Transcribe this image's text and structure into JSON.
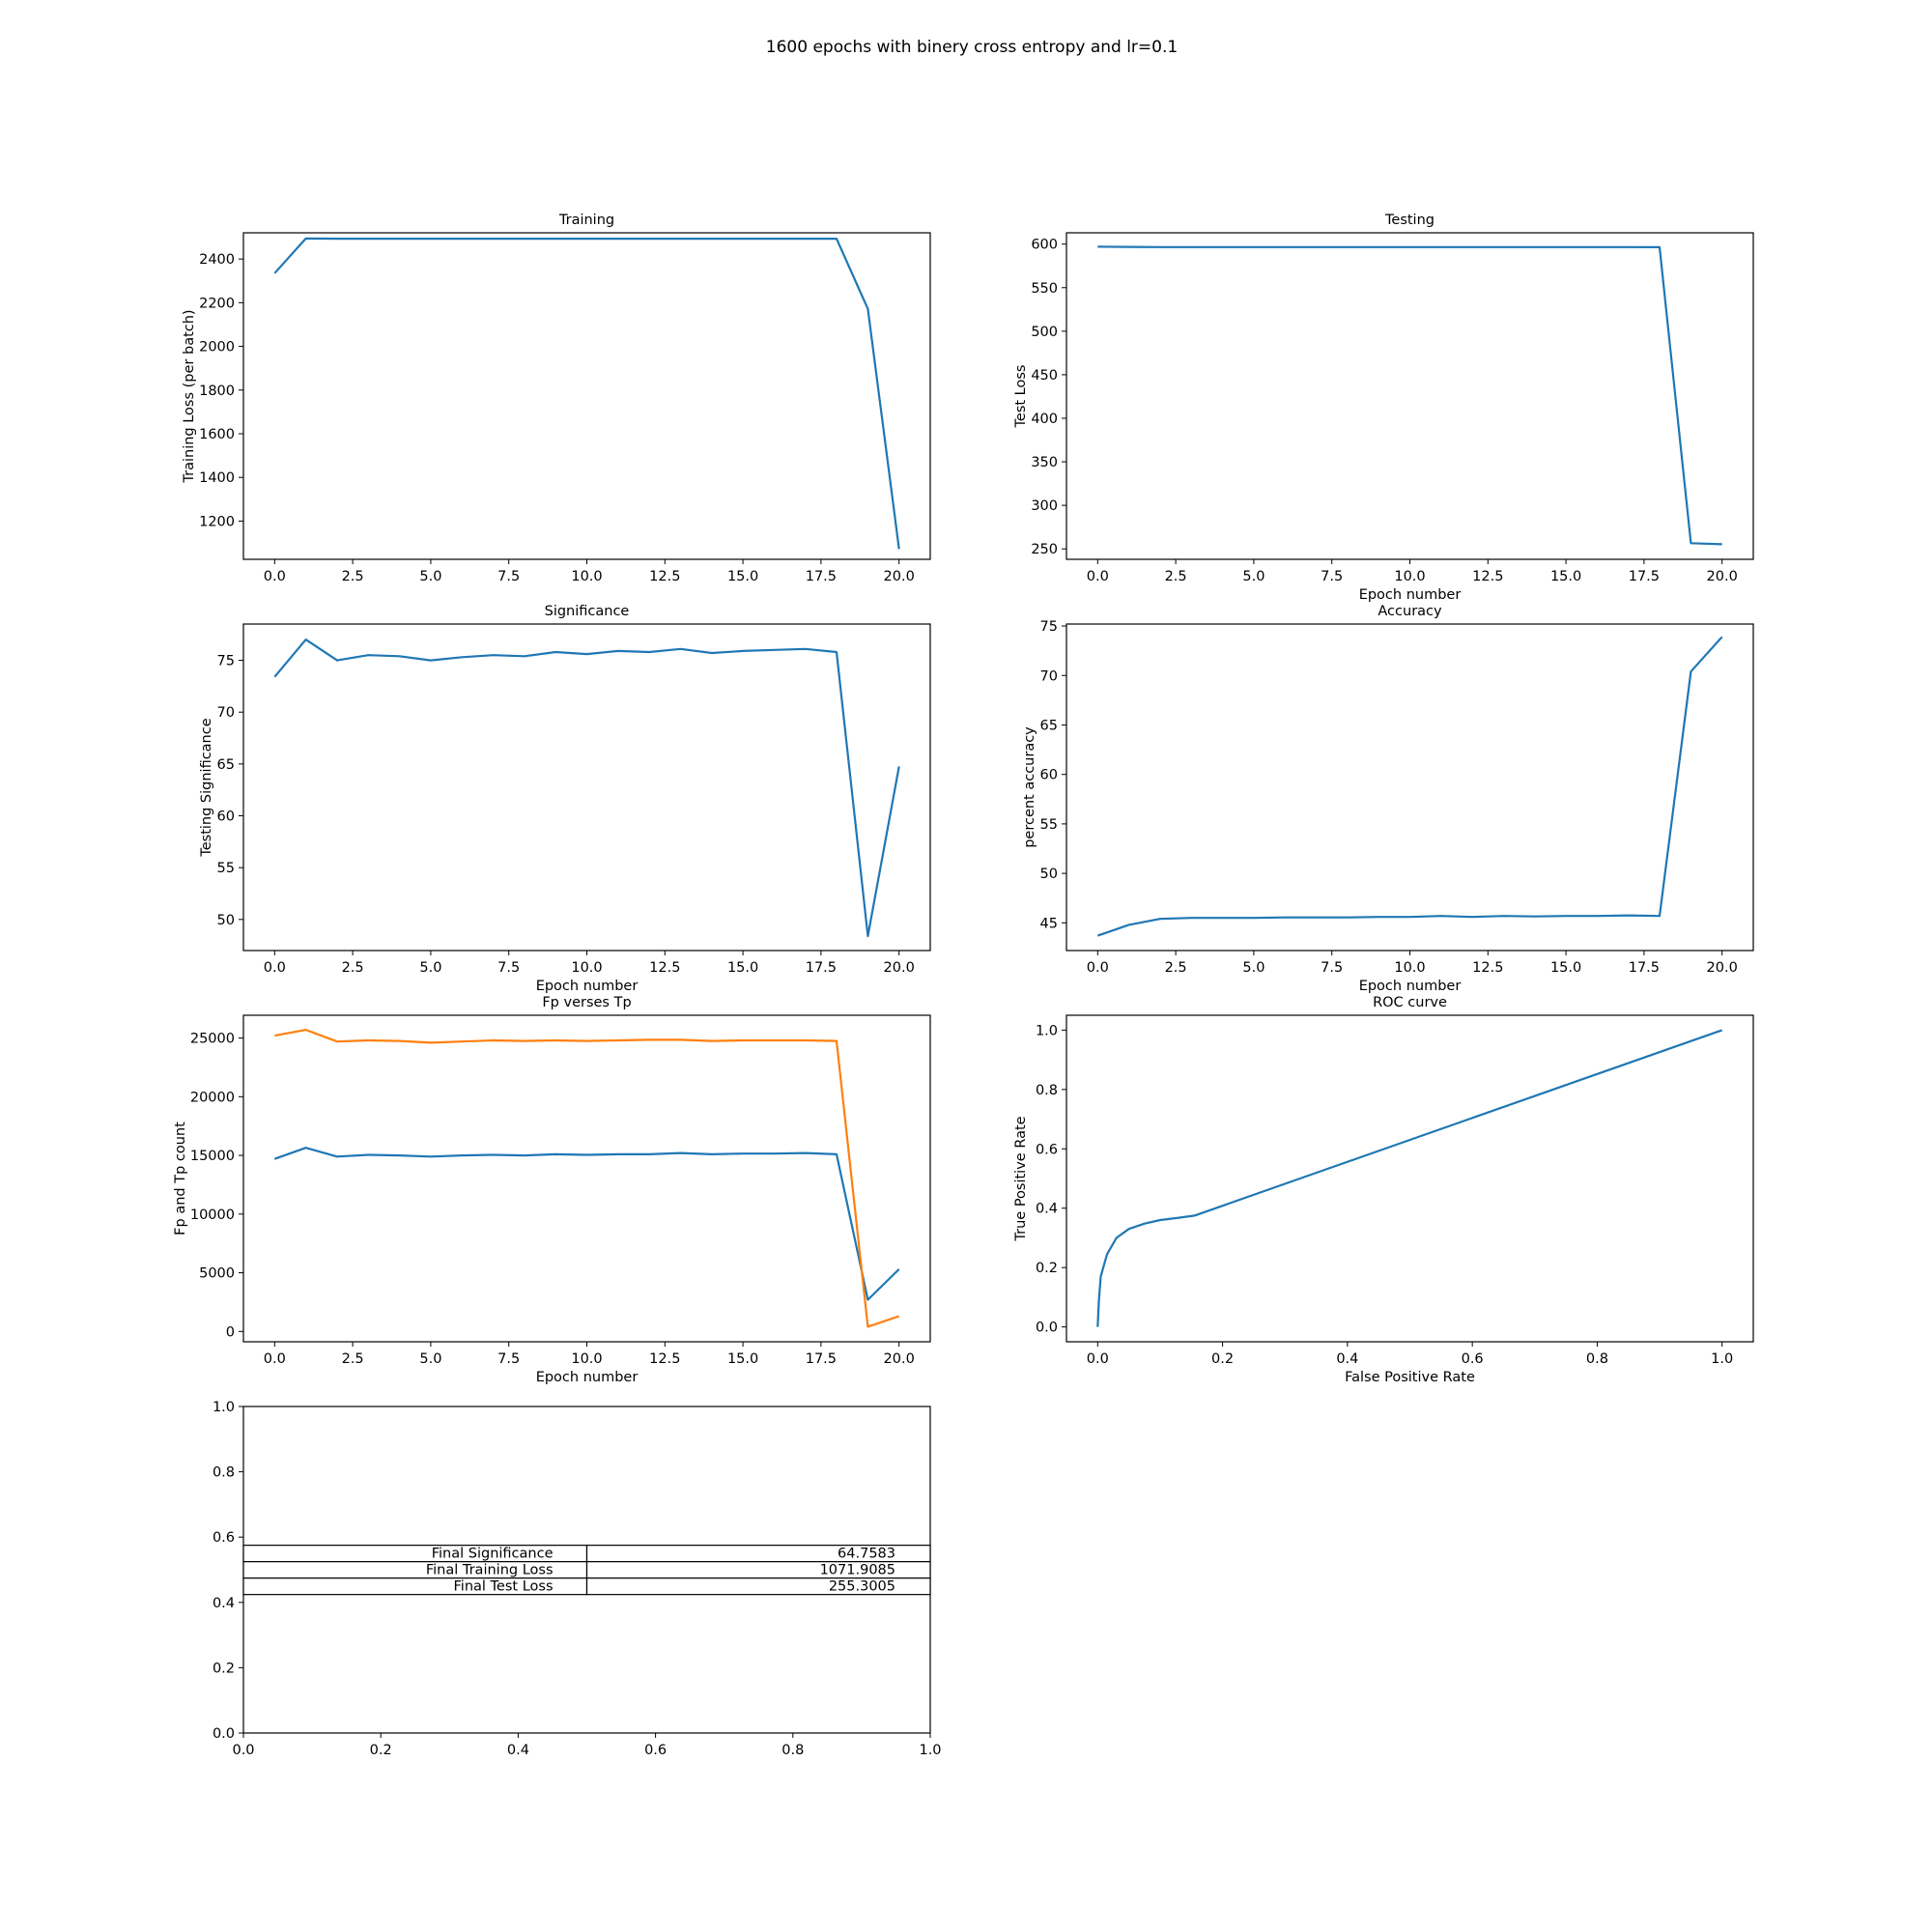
{
  "figure": {
    "suptitle": "1600 epochs with binery cross entropy and lr=0.1"
  },
  "colors": {
    "blue": "#1f77b4",
    "orange": "#ff7f0e",
    "axis": "#000000"
  },
  "chart_data": [
    {
      "id": "training",
      "type": "line",
      "title": "Training",
      "xlabel": "",
      "ylabel": "Training Loss (per batch)",
      "xlim": [
        -1.0,
        21.0
      ],
      "ylim": [
        1025,
        2520
      ],
      "xticks": [
        0.0,
        2.5,
        5.0,
        7.5,
        10.0,
        12.5,
        15.0,
        17.5,
        20.0
      ],
      "xtick_labels": [
        "0.0",
        "2.5",
        "5.0",
        "7.5",
        "10.0",
        "12.5",
        "15.0",
        "17.5",
        "20.0"
      ],
      "yticks": [
        1200,
        1400,
        1600,
        1800,
        2000,
        2200,
        2400
      ],
      "ytick_labels": [
        "1200",
        "1400",
        "1600",
        "1800",
        "2000",
        "2200",
        "2400"
      ],
      "series": [
        {
          "color": "#1f77b4",
          "x": [
            0,
            1,
            2,
            3,
            4,
            5,
            6,
            7,
            8,
            9,
            10,
            11,
            12,
            13,
            14,
            15,
            16,
            17,
            18,
            19,
            20
          ],
          "y": [
            2335,
            2494,
            2493,
            2493,
            2493,
            2493,
            2493,
            2493,
            2493,
            2493,
            2493,
            2493,
            2493,
            2493,
            2493,
            2493,
            2493,
            2493,
            2493,
            2172,
            1072
          ]
        }
      ]
    },
    {
      "id": "testing",
      "type": "line",
      "title": "Testing",
      "xlabel": "Epoch number",
      "ylabel": "Test Loss",
      "xlim": [
        -1.0,
        21.0
      ],
      "ylim": [
        238,
        613
      ],
      "xticks": [
        0.0,
        2.5,
        5.0,
        7.5,
        10.0,
        12.5,
        15.0,
        17.5,
        20.0
      ],
      "xtick_labels": [
        "0.0",
        "2.5",
        "5.0",
        "7.5",
        "10.0",
        "12.5",
        "15.0",
        "17.5",
        "20.0"
      ],
      "yticks": [
        250,
        300,
        350,
        400,
        450,
        500,
        550,
        600
      ],
      "ytick_labels": [
        "250",
        "300",
        "350",
        "400",
        "450",
        "500",
        "550",
        "600"
      ],
      "series": [
        {
          "color": "#1f77b4",
          "x": [
            0,
            1,
            2,
            3,
            4,
            5,
            6,
            7,
            8,
            9,
            10,
            11,
            12,
            13,
            14,
            15,
            16,
            17,
            18,
            19,
            20
          ],
          "y": [
            597,
            596.8,
            596.6,
            596.6,
            596.6,
            596.6,
            596.6,
            596.6,
            596.6,
            596.6,
            596.6,
            596.6,
            596.6,
            596.6,
            596.6,
            596.6,
            596.6,
            596.6,
            596.5,
            256.5,
            255.3
          ]
        }
      ]
    },
    {
      "id": "significance",
      "type": "line",
      "title": "Significance",
      "xlabel": "Epoch number",
      "ylabel": "Testing Significance",
      "xlim": [
        -1.0,
        21.0
      ],
      "ylim": [
        47.0,
        78.5
      ],
      "xticks": [
        0.0,
        2.5,
        5.0,
        7.5,
        10.0,
        12.5,
        15.0,
        17.5,
        20.0
      ],
      "xtick_labels": [
        "0.0",
        "2.5",
        "5.0",
        "7.5",
        "10.0",
        "12.5",
        "15.0",
        "17.5",
        "20.0"
      ],
      "yticks": [
        50,
        55,
        60,
        65,
        70,
        75
      ],
      "ytick_labels": [
        "50",
        "55",
        "60",
        "65",
        "70",
        "75"
      ],
      "series": [
        {
          "color": "#1f77b4",
          "x": [
            0,
            1,
            2,
            3,
            4,
            5,
            6,
            7,
            8,
            9,
            10,
            11,
            12,
            13,
            14,
            15,
            16,
            17,
            18,
            19,
            20
          ],
          "y": [
            73.4,
            77.0,
            75.0,
            75.5,
            75.4,
            75.0,
            75.3,
            75.5,
            75.4,
            75.8,
            75.6,
            75.9,
            75.8,
            76.1,
            75.7,
            75.9,
            76.0,
            76.1,
            75.8,
            48.4,
            64.76
          ]
        }
      ]
    },
    {
      "id": "accuracy",
      "type": "line",
      "title": "Accuracy",
      "xlabel": "Epoch number",
      "ylabel": "percent accuracy",
      "xlim": [
        -1.0,
        21.0
      ],
      "ylim": [
        42.2,
        75.2
      ],
      "xticks": [
        0.0,
        2.5,
        5.0,
        7.5,
        10.0,
        12.5,
        15.0,
        17.5,
        20.0
      ],
      "xtick_labels": [
        "0.0",
        "2.5",
        "5.0",
        "7.5",
        "10.0",
        "12.5",
        "15.0",
        "17.5",
        "20.0"
      ],
      "yticks": [
        45,
        50,
        55,
        60,
        65,
        70,
        75
      ],
      "ytick_labels": [
        "45",
        "50",
        "55",
        "60",
        "65",
        "70",
        "75"
      ],
      "series": [
        {
          "color": "#1f77b4",
          "x": [
            0,
            1,
            2,
            3,
            4,
            5,
            6,
            7,
            8,
            9,
            10,
            11,
            12,
            13,
            14,
            15,
            16,
            17,
            18,
            19,
            20
          ],
          "y": [
            43.7,
            44.8,
            45.4,
            45.5,
            45.5,
            45.5,
            45.55,
            45.55,
            45.55,
            45.6,
            45.6,
            45.7,
            45.6,
            45.7,
            45.65,
            45.7,
            45.7,
            45.75,
            45.7,
            70.4,
            73.9
          ]
        }
      ]
    },
    {
      "id": "fp_tp",
      "type": "line",
      "title": "Fp verses Tp",
      "xlabel": "Epoch number",
      "ylabel": "Fp and Tp count",
      "xlim": [
        -1.0,
        21.0
      ],
      "ylim": [
        -880,
        26940
      ],
      "xticks": [
        0.0,
        2.5,
        5.0,
        7.5,
        10.0,
        12.5,
        15.0,
        17.5,
        20.0
      ],
      "xtick_labels": [
        "0.0",
        "2.5",
        "5.0",
        "7.5",
        "10.0",
        "12.5",
        "15.0",
        "17.5",
        "20.0"
      ],
      "yticks": [
        0,
        5000,
        10000,
        15000,
        20000,
        25000
      ],
      "ytick_labels": [
        "0",
        "5000",
        "10000",
        "15000",
        "20000",
        "25000"
      ],
      "series": [
        {
          "color": "#1f77b4",
          "x": [
            0,
            1,
            2,
            3,
            4,
            5,
            6,
            7,
            8,
            9,
            10,
            11,
            12,
            13,
            14,
            15,
            16,
            17,
            18,
            19,
            20
          ],
          "y": [
            14700,
            15650,
            14900,
            15050,
            15000,
            14900,
            15000,
            15050,
            15000,
            15100,
            15050,
            15100,
            15100,
            15200,
            15100,
            15150,
            15150,
            15200,
            15100,
            2700,
            5300
          ]
        },
        {
          "color": "#ff7f0e",
          "x": [
            0,
            1,
            2,
            3,
            4,
            5,
            6,
            7,
            8,
            9,
            10,
            11,
            12,
            13,
            14,
            15,
            16,
            17,
            18,
            19,
            20
          ],
          "y": [
            25200,
            25700,
            24700,
            24800,
            24750,
            24600,
            24700,
            24800,
            24750,
            24800,
            24750,
            24800,
            24850,
            24850,
            24750,
            24800,
            24800,
            24800,
            24750,
            400,
            1300
          ]
        }
      ]
    },
    {
      "id": "roc",
      "type": "line",
      "title": "ROC curve",
      "xlabel": "False Positive Rate",
      "ylabel": "True Positive Rate",
      "xlim": [
        -0.05,
        1.05
      ],
      "ylim": [
        -0.05,
        1.05
      ],
      "xticks": [
        0.0,
        0.2,
        0.4,
        0.6,
        0.8,
        1.0
      ],
      "xtick_labels": [
        "0.0",
        "0.2",
        "0.4",
        "0.6",
        "0.8",
        "1.0"
      ],
      "yticks": [
        0.0,
        0.2,
        0.4,
        0.6,
        0.8,
        1.0
      ],
      "ytick_labels": [
        "0.0",
        "0.2",
        "0.4",
        "0.6",
        "0.8",
        "1.0"
      ],
      "series": [
        {
          "color": "#1f77b4",
          "x": [
            0.0,
            0.002,
            0.005,
            0.015,
            0.03,
            0.05,
            0.075,
            0.1,
            0.13,
            0.155,
            1.0
          ],
          "y": [
            0.0,
            0.09,
            0.17,
            0.245,
            0.3,
            0.33,
            0.348,
            0.36,
            0.368,
            0.375,
            1.0
          ]
        }
      ]
    },
    {
      "id": "summary_table",
      "type": "table",
      "xlim": [
        0.0,
        1.0
      ],
      "ylim": [
        0.0,
        1.0
      ],
      "xticks": [
        0.0,
        0.2,
        0.4,
        0.6,
        0.8,
        1.0
      ],
      "xtick_labels": [
        "0.0",
        "0.2",
        "0.4",
        "0.6",
        "0.8",
        "1.0"
      ],
      "yticks": [
        0.0,
        0.2,
        0.4,
        0.6,
        0.8,
        1.0
      ],
      "ytick_labels": [
        "0.0",
        "0.2",
        "0.4",
        "0.6",
        "0.8",
        "1.0"
      ],
      "rows": [
        [
          "Final Significance",
          "64.7583"
        ],
        [
          "Final Training Loss",
          "1071.9085"
        ],
        [
          "Final Test Loss",
          "255.3005"
        ]
      ]
    }
  ]
}
